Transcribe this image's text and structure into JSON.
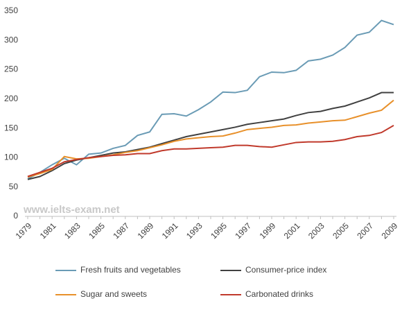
{
  "chart_data": {
    "type": "line",
    "watermark": "www.ielts-exam.net",
    "categories": [
      "1979",
      null,
      "1981",
      null,
      "1983",
      null,
      "1985",
      null,
      "1987",
      null,
      "1989",
      null,
      "1991",
      null,
      "1993",
      null,
      "1995",
      null,
      "1997",
      null,
      "1999",
      null,
      "2001",
      null,
      "2003",
      null,
      "2005",
      null,
      "2007",
      null,
      "2009"
    ],
    "series": [
      {
        "name": "Fresh fruits and vegetables",
        "color": "#6a9bb5",
        "values": [
          64,
          75,
          88,
          99,
          88,
          106,
          108,
          116,
          121,
          138,
          144,
          174,
          175,
          171,
          182,
          195,
          212,
          211,
          215,
          238,
          246,
          245,
          249,
          265,
          268,
          275,
          288,
          309,
          314,
          334,
          327
        ]
      },
      {
        "name": "Consumer-price index",
        "color": "#404040",
        "values": [
          63,
          68,
          78,
          90,
          96,
          100,
          104,
          108,
          110,
          114,
          118,
          124,
          130,
          136,
          140,
          144,
          148,
          152,
          157,
          160,
          163,
          166,
          172,
          177,
          179,
          184,
          188,
          195,
          202,
          211,
          211
        ]
      },
      {
        "name": "Sugar and sweets",
        "color": "#e8902a",
        "values": [
          67,
          73,
          80,
          102,
          98,
          99,
          102,
          105,
          109,
          112,
          117,
          122,
          128,
          132,
          134,
          136,
          137,
          142,
          148,
          150,
          152,
          155,
          156,
          159,
          161,
          163,
          164,
          170,
          176,
          181,
          198
        ]
      },
      {
        "name": "Carbonated drinks",
        "color": "#c0392b",
        "values": [
          68,
          75,
          82,
          93,
          97,
          100,
          102,
          104,
          105,
          107,
          107,
          112,
          115,
          115,
          116,
          117,
          118,
          121,
          121,
          119,
          118,
          122,
          126,
          127,
          127,
          128,
          131,
          136,
          138,
          143,
          155
        ]
      }
    ],
    "ylim": [
      0,
      350
    ],
    "yticks": [
      0,
      50,
      100,
      150,
      200,
      250,
      300,
      350
    ],
    "grid": false,
    "legend": "bottom"
  }
}
